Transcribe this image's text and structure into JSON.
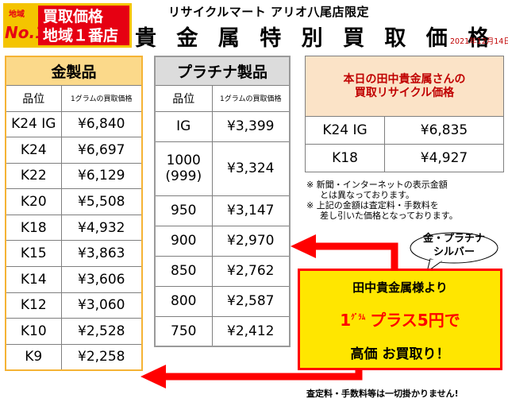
{
  "header": {
    "badge": {
      "region_label": "地域",
      "no1_label": "No.1",
      "line1": "買取価格",
      "line2": "地域１番店"
    },
    "shop_name": "リサイクルマート アリオ八尾店限定",
    "title": "貴 金 属 特 別 買 取 価 格",
    "date": "2021年12月14日"
  },
  "gold_table": {
    "caption": "金製品",
    "col_grade": "品位",
    "col_price": "1グラムの買取価格",
    "rows": [
      {
        "grade": "K24 IG",
        "price": "¥6,840"
      },
      {
        "grade": "K24",
        "price": "¥6,697"
      },
      {
        "grade": "K22",
        "price": "¥6,129"
      },
      {
        "grade": "K20",
        "price": "¥5,508"
      },
      {
        "grade": "K18",
        "price": "¥4,932"
      },
      {
        "grade": "K15",
        "price": "¥3,863"
      },
      {
        "grade": "K14",
        "price": "¥3,606"
      },
      {
        "grade": "K12",
        "price": "¥3,060"
      },
      {
        "grade": "K10",
        "price": "¥2,528"
      },
      {
        "grade": "K9",
        "price": "¥2,258"
      }
    ]
  },
  "platinum_table": {
    "caption": "プラチナ製品",
    "col_grade": "品位",
    "col_price": "1グラムの買取価格",
    "rows": [
      {
        "grade": "IG",
        "grade_sub": "",
        "price": "¥3,399"
      },
      {
        "grade": "1000",
        "grade_sub": "(999)",
        "price": "¥3,324"
      },
      {
        "grade": "950",
        "grade_sub": "",
        "price": "¥3,147"
      },
      {
        "grade": "900",
        "grade_sub": "",
        "price": "¥2,970"
      },
      {
        "grade": "850",
        "grade_sub": "",
        "price": "¥2,762"
      },
      {
        "grade": "800",
        "grade_sub": "",
        "price": "¥2,587"
      },
      {
        "grade": "750",
        "grade_sub": "",
        "price": "¥2,412"
      }
    ]
  },
  "today_table": {
    "caption_line1": "本日の田中貴金属さんの",
    "caption_line2": "買取リサイクル価格",
    "rows": [
      {
        "grade": "K24 IG",
        "price": "¥6,835"
      },
      {
        "grade": "K18",
        "price": "¥4,927"
      }
    ]
  },
  "notes": [
    "※ 新聞・インターネットの表示金額",
    "とは異なっております。",
    "※ 上記の金額は査定料・手数料を",
    "差し引いた価格となっております。"
  ],
  "bubble": {
    "line1": "金・プラチナ",
    "line2": "シルバー"
  },
  "promo": {
    "line1": "田中貴金属様より",
    "amount_num": "1",
    "amount_unit": "ｸﾞﾗﾑ",
    "amount_text": "プラス5円で",
    "line3": "高価 お買取り！"
  },
  "footer": "査定料・手数料等は一切掛かりません!",
  "colors": {
    "gold_header": "#fbd98a",
    "gold_border": "#f5b335",
    "platinum_header": "#dcdcdc",
    "today_header": "#fbe3c7",
    "accent_red": "#ff0000",
    "promo_yellow": "#ffe600"
  }
}
